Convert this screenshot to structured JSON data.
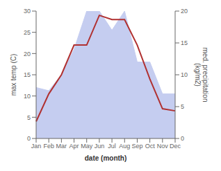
{
  "chart_data": {
    "type": "line",
    "categories": [
      "Jan",
      "Feb",
      "Mar",
      "Apr",
      "May",
      "Jun",
      "Jul",
      "Aug",
      "Sep",
      "Oct",
      "Nov",
      "Dec"
    ],
    "xlabel": "date (month)",
    "ylabel": "max temp (C)",
    "y2label": "med. precipitation\n(kg/m2)",
    "ylim": [
      0,
      30
    ],
    "yticks": [
      0,
      5,
      10,
      15,
      20,
      25,
      30
    ],
    "y2lim": [
      0,
      20
    ],
    "y2ticks": [
      0,
      5,
      10,
      15,
      20
    ],
    "grid": false,
    "series": [
      {
        "type": "area",
        "color": "#c5cdf0",
        "axis": "y2",
        "values": [
          8,
          7.5,
          10,
          14,
          20,
          20,
          17,
          20,
          12,
          12,
          7,
          7
        ]
      },
      {
        "type": "line",
        "color": "#b03030",
        "values": [
          4,
          10.5,
          15,
          22,
          22,
          29,
          28,
          28,
          22,
          14,
          7,
          6.5
        ]
      }
    ]
  }
}
